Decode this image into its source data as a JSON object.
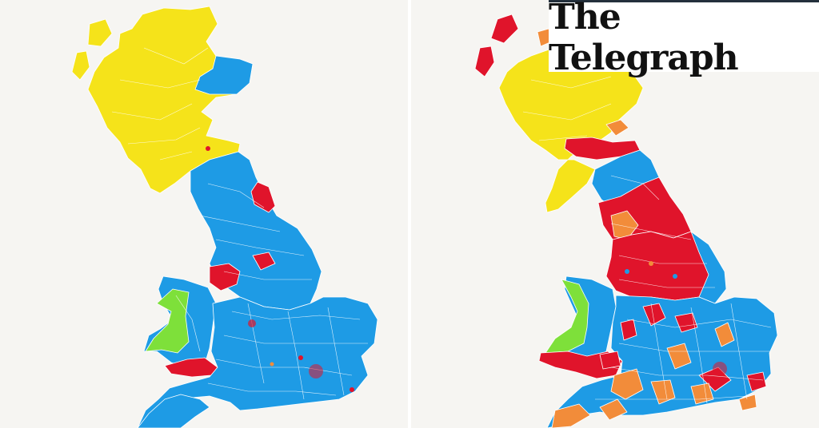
{
  "brand": {
    "masthead": "The Telegraph"
  },
  "maps": [
    {
      "id": "left",
      "regions": {
        "scotland": "#f5e31a",
        "scotland_ne": "#1e9be5",
        "north_england": "#1e9be5",
        "north_east_pocket": "#e0142b",
        "midlands": "#1e9be5",
        "merseyside": "#e0142b",
        "wales": "#1e9be5",
        "wales_west": "#7ee03a",
        "south_wales": "#e0142b",
        "south_england": "#1e9be5",
        "east_anglia": "#1e9be5",
        "southwest": "#1e9be5"
      }
    },
    {
      "id": "right",
      "regions": {
        "scotland": "#f5e31a",
        "islands": "#e0142b",
        "central_belt": "#e0142b",
        "north_england": "#1e9be5",
        "north_red": "#e0142b",
        "midlands": "#e0142b",
        "wales": "#1e9be5",
        "wales_west": "#7ee03a",
        "south_wales": "#e0142b",
        "south_england": "#1e9be5",
        "orange_patches": "#f28c3a"
      }
    }
  ]
}
